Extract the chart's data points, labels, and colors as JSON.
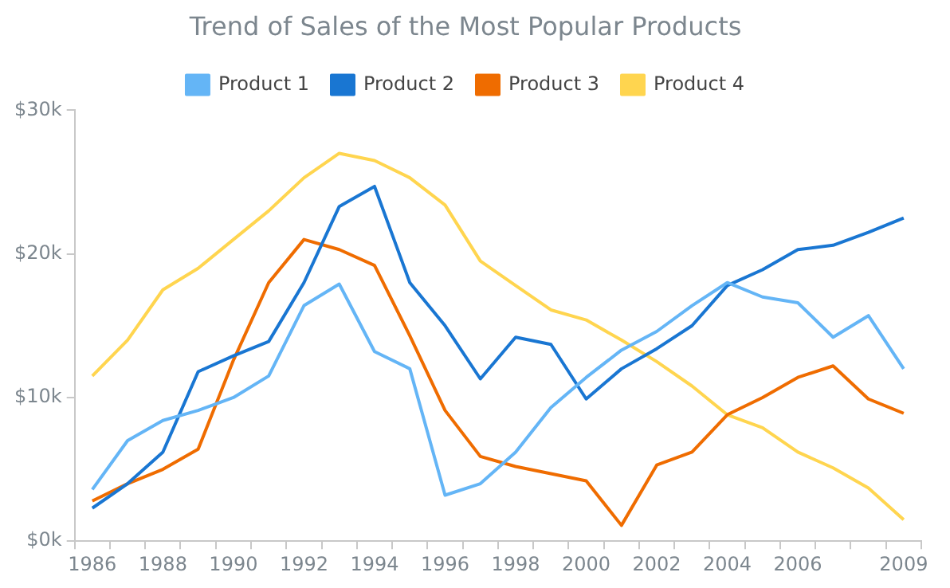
{
  "chart_data": {
    "type": "line",
    "title": "Trend of Sales of the Most Popular Products",
    "categories": [
      "1986",
      null,
      "1988",
      null,
      "1990",
      null,
      "1992",
      null,
      "1994",
      null,
      "1996",
      null,
      "1998",
      null,
      "2000",
      null,
      "2002",
      null,
      "2004",
      null,
      "2006",
      null,
      null,
      "2009"
    ],
    "series": [
      {
        "name": "Product 1",
        "color": "#64b5f6",
        "values": [
          3.6,
          7,
          8.4,
          9.1,
          10,
          11.5,
          16.4,
          17.9,
          13.2,
          12,
          3.2,
          4,
          6.2,
          9.3,
          11.4,
          13.3,
          14.6,
          16.4,
          18,
          17,
          16.6,
          14.2,
          15.7,
          12
        ]
      },
      {
        "name": "Product 2",
        "color": "#1976d2",
        "values": [
          2.3,
          4,
          6.2,
          11.8,
          12.9,
          13.9,
          18,
          23.3,
          24.7,
          18,
          15,
          11.3,
          14.2,
          13.7,
          9.9,
          12,
          13.4,
          15,
          17.8,
          18.9,
          20.3,
          20.6,
          21.5,
          22.5
        ]
      },
      {
        "name": "Product 3",
        "color": "#ef6c00",
        "values": [
          2.8,
          4,
          5,
          6.4,
          12.6,
          18,
          21,
          20.3,
          19.2,
          14.3,
          9.1,
          5.9,
          5.2,
          4.7,
          4.2,
          1.1,
          5.3,
          6.2,
          8.8,
          10,
          11.4,
          12.2,
          9.9,
          8.9
        ]
      },
      {
        "name": "Product 4",
        "color": "#ffd54f",
        "values": [
          11.5,
          14,
          17.5,
          19,
          21,
          23,
          25.3,
          27,
          26.5,
          25.3,
          23.4,
          19.5,
          17.8,
          16.1,
          15.4,
          14,
          12.5,
          10.8,
          8.8,
          7.9,
          6.2,
          5.1,
          3.7,
          1.5
        ]
      }
    ],
    "ylim": [
      0,
      30
    ],
    "yticks": [
      {
        "value": 0,
        "label": "$0k"
      },
      {
        "value": 10,
        "label": "$10k"
      },
      {
        "value": 20,
        "label": "$20k"
      },
      {
        "value": 30,
        "label": "$30k"
      }
    ],
    "grid": false,
    "legend": "top",
    "marker": "none",
    "line_style": "solid"
  }
}
